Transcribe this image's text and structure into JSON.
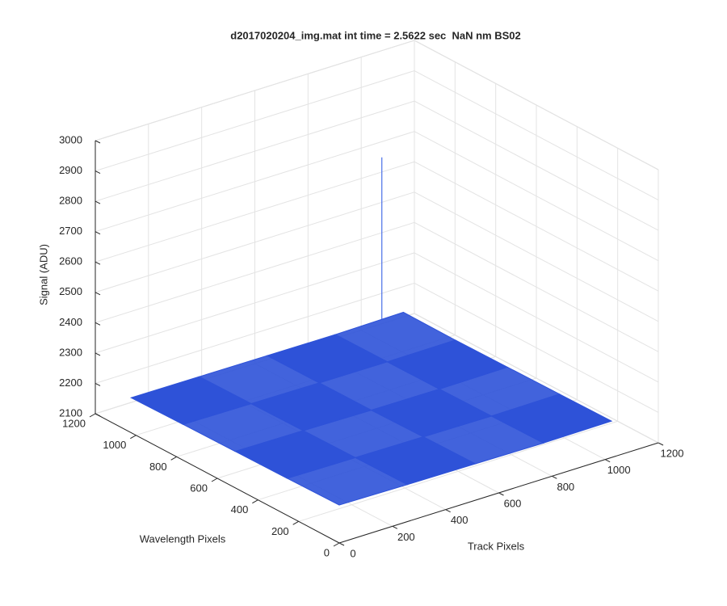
{
  "chart_data": {
    "type": "surface",
    "title": "d2017020204_img.mat int time = 2.5622 sec  NaN nm BS02",
    "xlabel": "Track Pixels",
    "ylabel": "Wavelength Pixels",
    "zlabel": "Signal (ADU)",
    "xlim": [
      0,
      1200
    ],
    "ylim": [
      0,
      1200
    ],
    "zlim": [
      2100,
      3000
    ],
    "xticks": [
      0,
      200,
      400,
      600,
      800,
      1000,
      1200
    ],
    "yticks": [
      0,
      200,
      400,
      600,
      800,
      1000,
      1200
    ],
    "zticks": [
      2100,
      2200,
      2300,
      2400,
      2500,
      2600,
      2700,
      2800,
      2900,
      3000
    ],
    "grid": true,
    "color": "#2e52d8",
    "x": [
      0,
      256,
      512,
      768,
      1024
    ],
    "y": [
      0,
      256,
      512,
      768,
      1024
    ],
    "z": [
      [
        2225,
        2222,
        2220,
        2218,
        2220
      ],
      [
        2222,
        2220,
        2218,
        2216,
        2218
      ],
      [
        2220,
        2218,
        2215,
        2214,
        2216
      ],
      [
        2218,
        2216,
        2214,
        2213,
        2214
      ],
      [
        2215,
        2214,
        2213,
        2212,
        2215
      ]
    ],
    "spike": {
      "x": 940,
      "y": 1020,
      "z": 2750
    }
  }
}
